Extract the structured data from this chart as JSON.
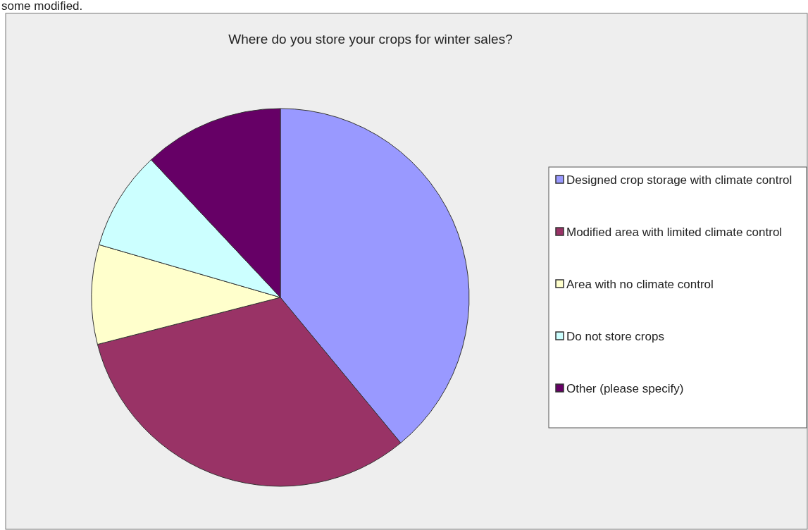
{
  "chart_data": {
    "type": "pie",
    "title": "Where do you store your crops for winter sales?",
    "annotations": [
      "some modified."
    ],
    "categories": [
      "Designed crop storage with climate control",
      "Modified area with limited climate control",
      "Area with no climate control",
      "Do not store crops",
      "Other (please specify)"
    ],
    "values": [
      39,
      32,
      8.5,
      8.5,
      12
    ],
    "colors": [
      "#9999ff",
      "#993366",
      "#ffffcc",
      "#ccffff",
      "#660066"
    ],
    "legend": "right"
  }
}
